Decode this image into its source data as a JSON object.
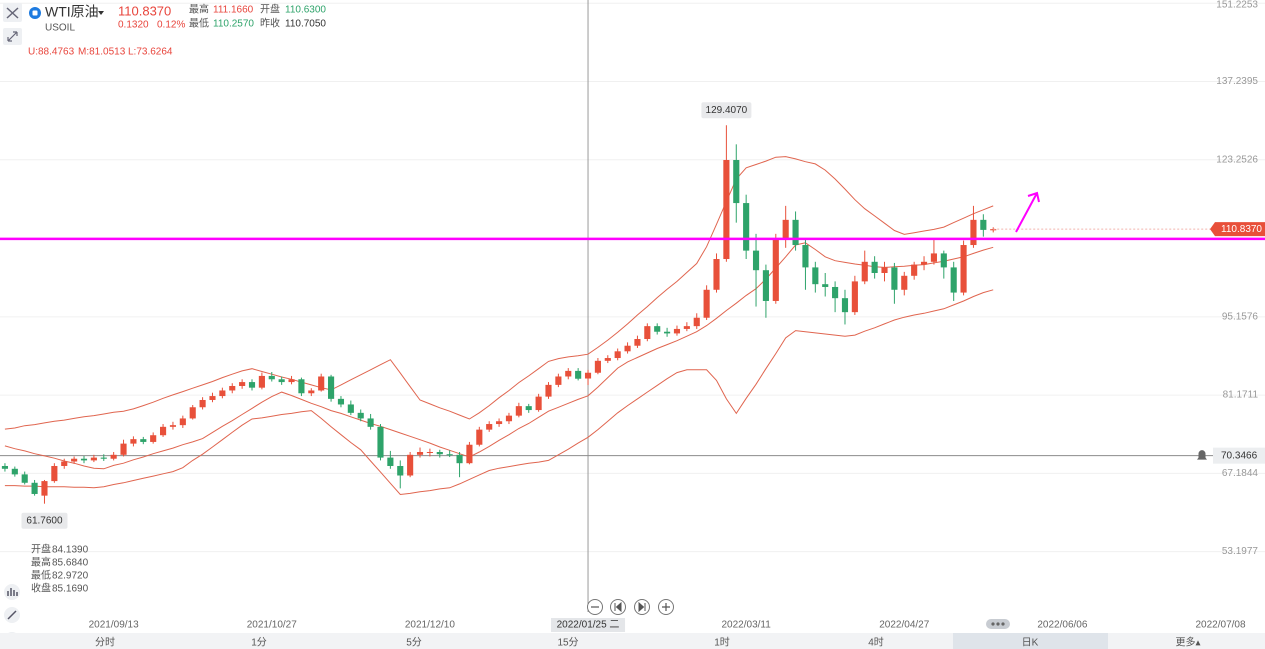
{
  "header": {
    "symbol": "WTI原油",
    "code": "USOIL",
    "price": "110.8370",
    "change": "0.1320",
    "change_pct": "0.12%",
    "stats": [
      {
        "label": "最高",
        "value": "111.1660"
      },
      {
        "label": "开盘",
        "value": "110.6300"
      },
      {
        "label": "最低",
        "value": "110.2570"
      },
      {
        "label": "昨收",
        "value": "110.7050"
      }
    ]
  },
  "tabs": [
    "分时",
    "1分",
    "5分",
    "15分",
    "1时",
    "4时",
    "日K",
    "更多▴"
  ],
  "chart_data": {
    "type": "candlestick",
    "up_color": "#e8503a",
    "down_color": "#2ea36a",
    "ylim": [
      42.4,
      151.8
    ],
    "yticks": [
      53.1977,
      67.1844,
      81.1711,
      95.1576,
      123.2526,
      137.2395,
      151.2253
    ],
    "grid": true,
    "categories": [
      null,
      null,
      null,
      null,
      null,
      null,
      null,
      null,
      null,
      null,
      null,
      "2021/09/13",
      null,
      null,
      null,
      null,
      null,
      null,
      null,
      null,
      null,
      null,
      null,
      null,
      null,
      null,
      null,
      "2021/10/27",
      null,
      null,
      null,
      null,
      null,
      null,
      null,
      null,
      null,
      null,
      null,
      null,
      null,
      null,
      null,
      "2021/12/10",
      null,
      null,
      null,
      null,
      null,
      null,
      null,
      null,
      null,
      null,
      null,
      null,
      null,
      null,
      null,
      "2022/01/25 二",
      null,
      null,
      null,
      null,
      null,
      null,
      null,
      null,
      null,
      null,
      null,
      null,
      null,
      null,
      null,
      "2022/03/11",
      null,
      null,
      null,
      null,
      null,
      null,
      null,
      null,
      null,
      null,
      null,
      null,
      null,
      null,
      null,
      "2022/04/27",
      null,
      null,
      null,
      null,
      null,
      null,
      null,
      null,
      null,
      null,
      null,
      null,
      null,
      null,
      null,
      "2022/06/06",
      null,
      null,
      null,
      null,
      null,
      null,
      null,
      null,
      null,
      null,
      null,
      null,
      null,
      null,
      null,
      "2022/07/08",
      null,
      null,
      null,
      null
    ],
    "ohlc": [
      [
        68.5,
        69.0,
        67.5,
        68.0
      ],
      [
        68.0,
        68.4,
        66.6,
        67.0
      ],
      [
        67.0,
        67.5,
        65.2,
        65.5
      ],
      [
        65.5,
        66.0,
        63.2,
        63.5
      ],
      [
        63.2,
        66.0,
        61.76,
        65.8
      ],
      [
        65.8,
        69.0,
        65.5,
        68.5
      ],
      [
        68.5,
        69.8,
        68.0,
        69.3
      ],
      [
        69.3,
        70.2,
        68.9,
        69.8
      ],
      [
        69.8,
        70.3,
        69.0,
        69.5
      ],
      [
        69.5,
        70.5,
        69.2,
        70.0
      ],
      [
        70.0,
        70.6,
        69.4,
        69.8
      ],
      [
        69.8,
        71.0,
        69.5,
        70.5
      ],
      [
        70.5,
        73.2,
        70.2,
        72.5
      ],
      [
        72.5,
        73.8,
        72.0,
        73.3
      ],
      [
        73.3,
        73.7,
        72.4,
        72.8
      ],
      [
        72.8,
        74.5,
        72.5,
        74.0
      ],
      [
        74.0,
        76.0,
        73.7,
        75.5
      ],
      [
        75.5,
        76.4,
        75.0,
        75.8
      ],
      [
        75.8,
        77.5,
        75.3,
        77.0
      ],
      [
        77.0,
        79.4,
        76.8,
        79.0
      ],
      [
        79.0,
        80.8,
        78.6,
        80.3
      ],
      [
        80.3,
        81.6,
        79.9,
        81.0
      ],
      [
        81.0,
        82.5,
        80.6,
        82.0
      ],
      [
        82.0,
        83.3,
        81.5,
        82.8
      ],
      [
        82.8,
        84.0,
        82.3,
        83.5
      ],
      [
        83.5,
        84.0,
        82.0,
        82.5
      ],
      [
        82.5,
        85.2,
        82.2,
        84.6
      ],
      [
        84.6,
        85.3,
        83.6,
        84.0
      ],
      [
        84.0,
        84.5,
        83.0,
        83.5
      ],
      [
        83.5,
        84.6,
        83.1,
        84.0
      ],
      [
        84.0,
        84.3,
        81.0,
        81.5
      ],
      [
        81.5,
        82.4,
        81.0,
        82.0
      ],
      [
        82.0,
        85.0,
        81.8,
        84.5
      ],
      [
        84.5,
        84.8,
        80.0,
        80.5
      ],
      [
        80.5,
        81.0,
        79.0,
        79.5
      ],
      [
        79.5,
        80.2,
        77.6,
        78.0
      ],
      [
        78.0,
        78.6,
        76.5,
        77.0
      ],
      [
        77.0,
        77.8,
        75.0,
        75.5
      ],
      [
        75.5,
        76.0,
        69.5,
        70.0
      ],
      [
        70.0,
        71.2,
        68.0,
        68.5
      ],
      [
        68.5,
        69.5,
        64.5,
        66.8
      ],
      [
        66.8,
        71.0,
        66.5,
        70.5
      ],
      [
        70.5,
        71.8,
        70.0,
        71.0
      ],
      [
        71.0,
        71.6,
        70.2,
        71.0
      ],
      [
        71.0,
        71.4,
        70.0,
        70.6
      ],
      [
        70.6,
        71.3,
        70.1,
        70.5
      ],
      [
        70.5,
        71.0,
        66.5,
        69.0
      ],
      [
        69.0,
        72.8,
        68.8,
        72.3
      ],
      [
        72.3,
        75.5,
        72.0,
        75.0
      ],
      [
        75.0,
        76.5,
        74.6,
        76.0
      ],
      [
        76.0,
        77.0,
        75.5,
        76.5
      ],
      [
        76.5,
        78.0,
        76.0,
        77.5
      ],
      [
        77.5,
        79.8,
        77.2,
        79.2
      ],
      [
        79.2,
        79.6,
        78.0,
        78.5
      ],
      [
        78.5,
        81.4,
        78.2,
        80.9
      ],
      [
        80.9,
        83.5,
        80.5,
        83.0
      ],
      [
        83.0,
        85.0,
        82.6,
        84.5
      ],
      [
        84.5,
        86.0,
        84.0,
        85.5
      ],
      [
        85.5,
        86.0,
        83.8,
        84.1
      ],
      [
        84.139,
        85.684,
        82.972,
        85.169
      ],
      [
        85.169,
        87.8,
        84.9,
        87.3
      ],
      [
        87.3,
        88.3,
        86.9,
        87.8
      ],
      [
        87.8,
        89.5,
        87.4,
        89.0
      ],
      [
        89.0,
        90.6,
        88.6,
        90.0
      ],
      [
        90.0,
        91.8,
        89.6,
        91.2
      ],
      [
        91.2,
        94.0,
        90.8,
        93.5
      ],
      [
        93.5,
        94.0,
        92.0,
        92.5
      ],
      [
        92.5,
        93.2,
        91.6,
        92.2
      ],
      [
        92.2,
        93.6,
        91.8,
        93.0
      ],
      [
        93.0,
        94.2,
        92.6,
        93.5
      ],
      [
        93.5,
        95.8,
        93.0,
        95.0
      ],
      [
        95.0,
        100.8,
        94.6,
        100.0
      ],
      [
        100.0,
        106.5,
        99.5,
        105.5
      ],
      [
        105.5,
        129.407,
        105.0,
        123.2
      ],
      [
        123.2,
        126.0,
        112.0,
        115.5
      ],
      [
        115.5,
        117.0,
        105.5,
        107.0
      ],
      [
        107.0,
        110.0,
        97.0,
        103.5
      ],
      [
        103.5,
        104.5,
        95.0,
        98.0
      ],
      [
        98.0,
        110.0,
        97.5,
        109.0
      ],
      [
        109.0,
        115.0,
        107.5,
        112.5
      ],
      [
        112.5,
        114.0,
        107.0,
        108.0
      ],
      [
        108.0,
        109.0,
        100.0,
        104.0
      ],
      [
        104.0,
        105.0,
        99.5,
        101.0
      ],
      [
        101.0,
        103.0,
        98.8,
        100.5
      ],
      [
        100.5,
        101.5,
        96.0,
        98.5
      ],
      [
        98.5,
        100.0,
        93.8,
        96.0
      ],
      [
        96.0,
        102.5,
        95.5,
        101.5
      ],
      [
        101.5,
        107.0,
        101.0,
        105.0
      ],
      [
        105.0,
        106.0,
        102.0,
        103.0
      ],
      [
        103.0,
        105.0,
        101.5,
        104.0
      ],
      [
        104.0,
        104.8,
        97.5,
        100.0
      ],
      [
        100.0,
        103.2,
        99.0,
        102.5
      ],
      [
        102.5,
        105.0,
        101.8,
        104.5
      ],
      [
        104.5,
        106.0,
        103.5,
        105.0
      ],
      [
        105.0,
        109.0,
        104.5,
        106.5
      ],
      [
        106.5,
        107.0,
        102.0,
        104.0
      ],
      [
        104.0,
        105.0,
        98.0,
        99.5
      ],
      [
        99.5,
        108.8,
        99.0,
        108.0
      ],
      [
        108.0,
        115.0,
        107.5,
        112.5
      ],
      [
        112.5,
        113.5,
        109.5,
        110.705
      ],
      [
        110.63,
        111.166,
        110.257,
        110.837
      ],
      null,
      null,
      null,
      null,
      null,
      null,
      null,
      null,
      null,
      null,
      null,
      null,
      null,
      null,
      null,
      null,
      null,
      null,
      null,
      null,
      null,
      null,
      null,
      null,
      null,
      null,
      null
    ],
    "bands": [
      {
        "color": "#e0654f",
        "values": [
          75.1,
          75.3,
          75.7,
          75.9,
          76.2,
          76.5,
          76.7,
          77.0,
          77.3,
          77.5,
          77.8,
          78.1,
          78.3,
          78.7,
          79.3,
          79.9,
          80.6,
          81.2,
          81.8,
          82.4,
          83.0,
          83.6,
          84.3,
          84.9,
          85.5,
          85.9,
          85.4,
          84.9,
          84.4,
          84.0,
          83.5,
          83.0,
          82.5,
          82.1,
          83.0,
          83.9,
          84.8,
          85.7,
          86.6,
          87.5,
          85.1,
          82.7,
          80.3,
          79.6,
          78.9,
          78.3,
          77.6,
          76.9,
          78.0,
          79.3,
          80.7,
          82.0,
          83.4,
          84.6,
          85.9,
          87.2,
          87.7,
          88.0,
          88.2,
          88.4763,
          89.7,
          91.0,
          92.4,
          93.9,
          95.5,
          97.0,
          98.6,
          100.1,
          101.5,
          103.1,
          104.7,
          107.7,
          111.7,
          115.8,
          119.8,
          121.8,
          122.4,
          123.0,
          123.7,
          123.8,
          123.4,
          122.9,
          122.5,
          121.4,
          119.8,
          118.0,
          116.1,
          114.5,
          113.2,
          111.9,
          110.6,
          109.9,
          110.2,
          110.5,
          110.8,
          111.2,
          112.0,
          112.8,
          113.6,
          114.3,
          115.0,
          null,
          null,
          null,
          null,
          null,
          null,
          null,
          null,
          null,
          null,
          null,
          null,
          null,
          null,
          null,
          null,
          null,
          null,
          null,
          null,
          null,
          null,
          null,
          null,
          null,
          null,
          null
        ]
      },
      {
        "color": "#e0654f",
        "values": [
          72.1,
          71.6,
          71.2,
          70.7,
          70.3,
          69.9,
          69.4,
          69.0,
          68.5,
          68.1,
          68.0,
          68.6,
          69.0,
          69.6,
          70.1,
          70.7,
          71.2,
          71.7,
          72.3,
          72.8,
          73.4,
          74.5,
          75.6,
          76.6,
          77.7,
          78.8,
          79.9,
          80.9,
          81.7,
          81.1,
          80.4,
          79.7,
          79.1,
          78.4,
          77.9,
          77.3,
          76.7,
          76.1,
          75.6,
          75.0,
          74.4,
          73.8,
          73.2,
          72.6,
          71.9,
          71.3,
          70.7,
          70.1,
          71.0,
          72.0,
          73.1,
          74.1,
          75.2,
          76.1,
          77.2,
          78.3,
          79.0,
          79.7,
          80.4,
          81.0513,
          82.6,
          84.3,
          86.0,
          87.1,
          87.9,
          88.7,
          89.5,
          90.2,
          90.9,
          91.7,
          92.5,
          93.6,
          94.9,
          96.3,
          97.6,
          99.0,
          100.2,
          101.9,
          103.9,
          105.9,
          108.0,
          108.4,
          107.2,
          105.9,
          105.2,
          104.9,
          104.6,
          104.4,
          104.1,
          104.0,
          104.1,
          104.2,
          104.4,
          104.5,
          104.8,
          105.1,
          105.5,
          105.9,
          106.5,
          107.1,
          107.6,
          null,
          null,
          null,
          null,
          null,
          null,
          null,
          null,
          null,
          null,
          null,
          null,
          null,
          null,
          null,
          null,
          null,
          null,
          null,
          null,
          null,
          null,
          null,
          null,
          null,
          null,
          null
        ]
      },
      {
        "color": "#e0654f",
        "values": [
          65.0,
          65.0,
          64.9,
          64.9,
          64.8,
          64.8,
          64.8,
          64.7,
          64.7,
          64.6,
          64.8,
          65.2,
          65.5,
          65.9,
          66.3,
          66.7,
          67.1,
          67.5,
          68.2,
          69.5,
          70.6,
          71.9,
          73.2,
          74.5,
          75.8,
          76.9,
          77.1,
          77.4,
          77.7,
          77.9,
          78.2,
          78.4,
          77.0,
          75.5,
          74.1,
          72.7,
          71.4,
          69.4,
          67.4,
          65.4,
          63.4,
          63.6,
          63.9,
          64.1,
          64.4,
          64.6,
          65.3,
          66.1,
          66.9,
          67.7,
          68.1,
          68.4,
          68.7,
          69.0,
          69.2,
          69.5,
          70.5,
          71.5,
          72.6,
          73.6264,
          75.0,
          76.5,
          78.0,
          79.3,
          80.5,
          81.7,
          82.9,
          84.1,
          85.2,
          85.7,
          85.7,
          85.7,
          83.8,
          80.5,
          77.9,
          80.6,
          83.1,
          85.9,
          88.6,
          91.4,
          92.7,
          92.5,
          92.3,
          92.1,
          91.9,
          91.7,
          91.9,
          92.6,
          93.2,
          93.9,
          94.6,
          95.1,
          95.5,
          95.8,
          96.2,
          96.6,
          97.3,
          98.0,
          98.8,
          99.5,
          100.0,
          null,
          null,
          null,
          null,
          null,
          null,
          null,
          null,
          null,
          null,
          null,
          null,
          null,
          null,
          null,
          null,
          null,
          null,
          null,
          null,
          null,
          null,
          null,
          null,
          null,
          null,
          null
        ]
      }
    ],
    "max_label": "129.4070",
    "min_label": "61.7600",
    "drawn_line": {
      "value": 109.1,
      "color": "#ff00ff"
    },
    "alert_line": {
      "value": 70.3466,
      "color": "#8c8c8c"
    },
    "crosshair": {
      "ohlc_labels": [
        {
          "name": "开盘",
          "value": "84.1390"
        },
        {
          "name": "最高",
          "value": "85.6840"
        },
        {
          "name": "最低",
          "value": "82.9720"
        },
        {
          "name": "收盘",
          "value": "85.1690"
        }
      ],
      "band_labels": [
        "U:88.4763",
        "M:81.0513",
        "L:73.6264"
      ]
    }
  }
}
